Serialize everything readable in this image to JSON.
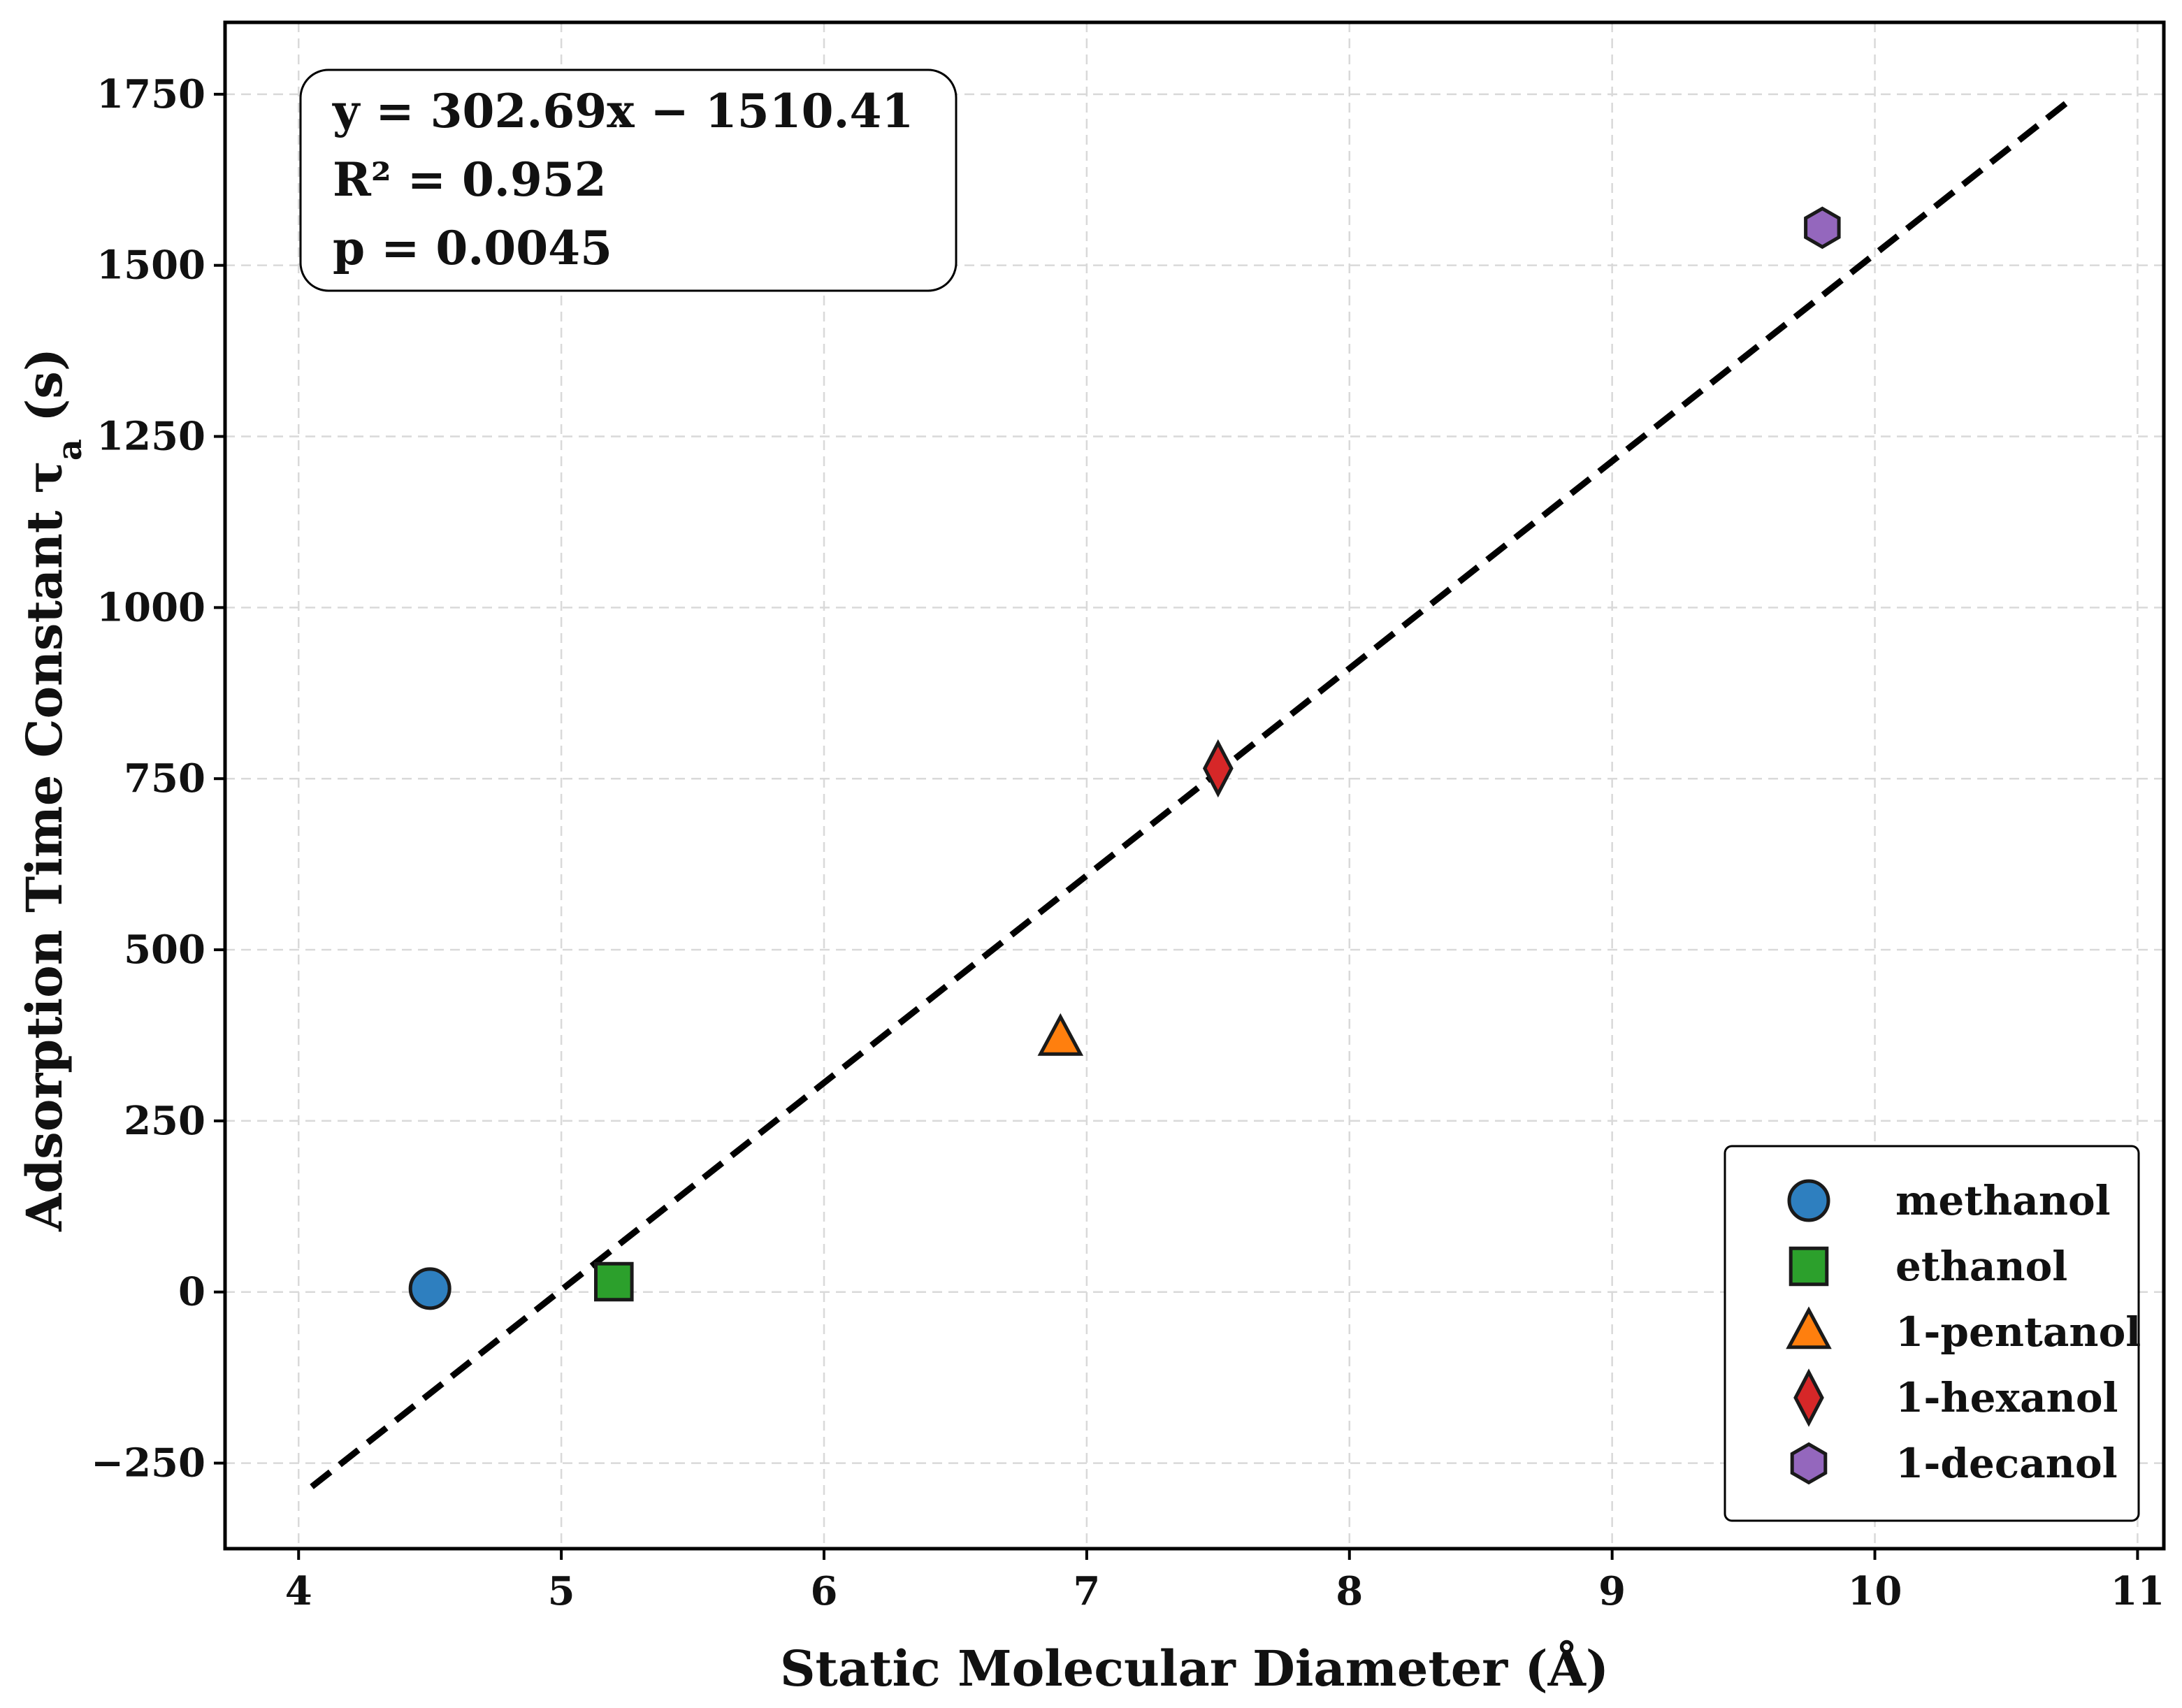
{
  "chart_data": {
    "type": "scatter",
    "xlabel": "Static Molecular Diameter (Å)",
    "ylabel_main": "Adsorption Time Constant τ",
    "ylabel_sub": "a",
    "ylabel_unit": " (s)",
    "xlim": [
      3.72,
      11.1
    ],
    "ylim": [
      -375,
      1855
    ],
    "x_ticks": [
      4,
      5,
      6,
      7,
      8,
      9,
      10,
      11
    ],
    "y_ticks": [
      -250,
      0,
      250,
      500,
      750,
      1000,
      1250,
      1500,
      1750
    ],
    "y_tick_labels": [
      "−250",
      "0",
      "250",
      "500",
      "750",
      "1000",
      "1250",
      "1500",
      "1750"
    ],
    "grid": true,
    "series": [
      {
        "name": "methanol",
        "x": 4.5,
        "y": 5,
        "marker": "circle",
        "color": "#2e7fbf"
      },
      {
        "name": "ethanol",
        "x": 5.2,
        "y": 15,
        "marker": "square",
        "color": "#2ca02c"
      },
      {
        "name": "1-pentanol",
        "x": 6.9,
        "y": 370,
        "marker": "triangle",
        "color": "#ff7f0e"
      },
      {
        "name": "1-hexanol",
        "x": 7.5,
        "y": 765,
        "marker": "diamond",
        "color": "#d62728"
      },
      {
        "name": "1-decanol",
        "x": 9.8,
        "y": 1555,
        "marker": "hexagon",
        "color": "#9467bd"
      }
    ],
    "fit": {
      "slope": 302.69,
      "intercept": -1510.41,
      "x_range": [
        4.05,
        10.75
      ],
      "style": "dashed",
      "color": "#000000"
    },
    "annotation_lines": [
      "y = 302.69x − 1510.41",
      "R² = 0.952",
      "p = 0.0045"
    ],
    "legend": {
      "position": "bottom-right",
      "entries": [
        "methanol",
        "ethanol",
        "1-pentanol",
        "1-hexanol",
        "1-decanol"
      ]
    }
  }
}
